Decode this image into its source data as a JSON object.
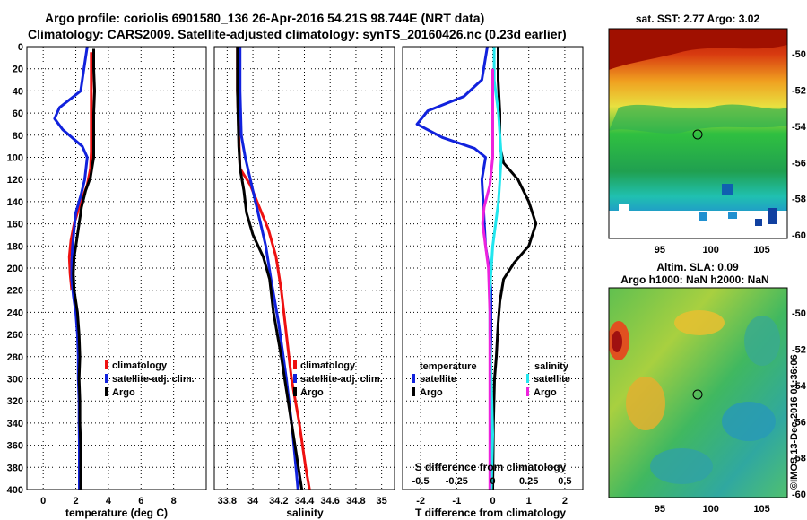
{
  "titles": {
    "line1": "Argo profile: coriolis 6901580_136 26-Apr-2016 54.21S 98.744E (NRT data)",
    "line2": "Climatology: CARS2009. Satellite-adjusted climatology: synTS_20160426.nc (0.23d earlier)"
  },
  "colors": {
    "climatology": "#ee1111",
    "satellite": "#1122dd",
    "argo": "#000000",
    "sat_salinity": "#22e6ee",
    "salinity_diff": "#ee22dd"
  },
  "depth_ticks": [
    0,
    20,
    40,
    60,
    80,
    100,
    120,
    140,
    160,
    180,
    200,
    220,
    240,
    260,
    280,
    300,
    320,
    340,
    360,
    380,
    400
  ],
  "chart_data": [
    {
      "type": "line",
      "id": "temperature",
      "xlabel": "temperature (deg C)",
      "ylabel": "depth",
      "xlim": [
        -1,
        10
      ],
      "ylim": [
        400,
        0
      ],
      "xticks": [
        "0",
        "2",
        "4",
        "6",
        "8"
      ],
      "xtick_values": [
        0,
        2,
        4,
        6,
        8
      ],
      "legend": [
        "climatology",
        "satellite-adj. clim.",
        "Argo"
      ],
      "series": [
        {
          "name": "climatology",
          "color_key": "climatology",
          "points": [
            [
              2.95,
              5
            ],
            [
              2.95,
              30
            ],
            [
              2.95,
              50
            ],
            [
              2.95,
              75
            ],
            [
              2.95,
              95
            ],
            [
              2.9,
              110
            ],
            [
              2.7,
              125
            ],
            [
              2.2,
              145
            ],
            [
              1.9,
              160
            ],
            [
              1.7,
              175
            ],
            [
              1.6,
              190
            ],
            [
              1.65,
              205
            ],
            [
              1.75,
              220
            ]
          ]
        },
        {
          "name": "satellite-adj. clim.",
          "color_key": "satellite",
          "points": [
            [
              2.7,
              0
            ],
            [
              2.5,
              20
            ],
            [
              2.3,
              40
            ],
            [
              1.0,
              55
            ],
            [
              0.7,
              65
            ],
            [
              1.2,
              75
            ],
            [
              2.4,
              90
            ],
            [
              2.7,
              100
            ],
            [
              2.55,
              120
            ],
            [
              2.3,
              135
            ],
            [
              2.0,
              150
            ],
            [
              1.9,
              165
            ],
            [
              1.8,
              180
            ],
            [
              1.75,
              195
            ],
            [
              1.75,
              210
            ],
            [
              1.85,
              225
            ],
            [
              2.0,
              240
            ],
            [
              2.1,
              260
            ],
            [
              2.15,
              280
            ],
            [
              2.15,
              300
            ],
            [
              2.2,
              320
            ],
            [
              2.2,
              340
            ],
            [
              2.22,
              360
            ],
            [
              2.22,
              380
            ],
            [
              2.22,
              400
            ]
          ]
        },
        {
          "name": "Argo",
          "color_key": "argo",
          "points": [
            [
              3.1,
              2
            ],
            [
              3.1,
              20
            ],
            [
              3.15,
              40
            ],
            [
              3.1,
              60
            ],
            [
              3.1,
              80
            ],
            [
              3.1,
              100
            ],
            [
              2.9,
              118
            ],
            [
              2.6,
              130
            ],
            [
              2.35,
              145
            ],
            [
              2.2,
              160
            ],
            [
              2.05,
              175
            ],
            [
              1.9,
              190
            ],
            [
              1.85,
              205
            ],
            [
              1.9,
              220
            ],
            [
              2.1,
              240
            ],
            [
              2.2,
              260
            ],
            [
              2.25,
              280
            ],
            [
              2.2,
              300
            ],
            [
              2.25,
              320
            ],
            [
              2.25,
              340
            ],
            [
              2.3,
              360
            ],
            [
              2.3,
              380
            ],
            [
              2.3,
              400
            ]
          ]
        }
      ]
    },
    {
      "type": "line",
      "id": "salinity",
      "xlabel": "salinity",
      "ylabel": "depth",
      "xlim": [
        33.7,
        35.1
      ],
      "ylim": [
        400,
        0
      ],
      "xticks": [
        "33.8",
        "34",
        "34.2",
        "34.4",
        "34.6",
        "34.8",
        "35"
      ],
      "xtick_values": [
        33.8,
        34,
        34.2,
        34.4,
        34.6,
        34.8,
        35
      ],
      "legend": [
        "climatology",
        "satellite-adj. clim.",
        "Argo"
      ],
      "series": [
        {
          "name": "climatology",
          "color_key": "climatology",
          "points": [
            [
              33.88,
              0
            ],
            [
              33.88,
              40
            ],
            [
              33.89,
              80
            ],
            [
              33.9,
              110
            ],
            [
              33.98,
              125
            ],
            [
              34.05,
              145
            ],
            [
              34.12,
              165
            ],
            [
              34.18,
              190
            ],
            [
              34.22,
              220
            ],
            [
              34.26,
              260
            ],
            [
              34.3,
              300
            ],
            [
              34.36,
              340
            ],
            [
              34.41,
              380
            ],
            [
              34.44,
              400
            ]
          ]
        },
        {
          "name": "satellite-adj. clim.",
          "color_key": "satellite",
          "points": [
            [
              33.9,
              0
            ],
            [
              33.9,
              40
            ],
            [
              33.91,
              80
            ],
            [
              33.94,
              100
            ],
            [
              33.98,
              120
            ],
            [
              34.02,
              140
            ],
            [
              34.06,
              160
            ],
            [
              34.1,
              180
            ],
            [
              34.14,
              210
            ],
            [
              34.2,
              250
            ],
            [
              34.26,
              300
            ],
            [
              34.31,
              350
            ],
            [
              34.35,
              400
            ]
          ]
        },
        {
          "name": "Argo",
          "color_key": "argo",
          "points": [
            [
              33.88,
              0
            ],
            [
              33.88,
              40
            ],
            [
              33.89,
              90
            ],
            [
              33.9,
              110
            ],
            [
              33.93,
              130
            ],
            [
              33.95,
              150
            ],
            [
              34.0,
              170
            ],
            [
              34.08,
              190
            ],
            [
              34.13,
              210
            ],
            [
              34.16,
              240
            ],
            [
              34.22,
              280
            ],
            [
              34.26,
              310
            ],
            [
              34.3,
              340
            ],
            [
              34.34,
              370
            ],
            [
              34.38,
              400
            ]
          ]
        }
      ]
    },
    {
      "type": "line",
      "id": "difference",
      "xlabel": "T difference from climatology",
      "ylabel": "depth",
      "top_xlabel": "S difference from climatology",
      "xlim": [
        -2.5,
        2.5
      ],
      "ylim": [
        400,
        0
      ],
      "xticks": [
        "-2",
        "-1",
        "0",
        "1",
        "2"
      ],
      "xtick_values": [
        -2,
        -1,
        0,
        1,
        2
      ],
      "top_xticks": [
        "-0.5",
        "-0.25",
        "0",
        "0.25",
        "0.5"
      ],
      "top_xtick_values": [
        -0.5,
        -0.25,
        0,
        0.25,
        0.5
      ],
      "legend_groups": [
        {
          "title": "temperature",
          "items": [
            "satellite",
            "Argo"
          ]
        },
        {
          "title": "salinity",
          "items": [
            "satellite",
            "Argo"
          ]
        }
      ],
      "series": [
        {
          "name": "temperature satellite",
          "color_key": "satellite",
          "points": [
            [
              -0.15,
              0
            ],
            [
              -0.3,
              30
            ],
            [
              -0.8,
              45
            ],
            [
              -1.8,
              58
            ],
            [
              -2.1,
              70
            ],
            [
              -1.4,
              82
            ],
            [
              -0.5,
              92
            ],
            [
              -0.2,
              100
            ],
            [
              -0.3,
              120
            ],
            [
              -0.25,
              150
            ],
            [
              -0.2,
              180
            ],
            [
              -0.1,
              200
            ],
            [
              -0.05,
              220
            ],
            [
              -0.05,
              260
            ],
            [
              -0.07,
              300
            ],
            [
              -0.05,
              350
            ],
            [
              -0.05,
              400
            ]
          ]
        },
        {
          "name": "temperature Argo",
          "color_key": "argo",
          "points": [
            [
              0.15,
              0
            ],
            [
              0.15,
              30
            ],
            [
              0.2,
              60
            ],
            [
              0.2,
              90
            ],
            [
              0.3,
              105
            ],
            [
              0.7,
              120
            ],
            [
              1.0,
              140
            ],
            [
              1.2,
              160
            ],
            [
              1.0,
              180
            ],
            [
              0.6,
              195
            ],
            [
              0.3,
              210
            ],
            [
              0.2,
              230
            ],
            [
              0.15,
              250
            ],
            [
              0.1,
              280
            ],
            [
              0.05,
              300
            ],
            [
              0.02,
              340
            ],
            [
              0.0,
              400
            ]
          ]
        },
        {
          "name": "salinity satellite",
          "color_key": "sat_salinity",
          "points": [
            [
              0.01,
              0
            ],
            [
              0.01,
              30
            ],
            [
              0.04,
              60
            ],
            [
              0.06,
              100
            ],
            [
              0.04,
              140
            ],
            [
              0.0,
              180
            ],
            [
              -0.02,
              220
            ],
            [
              -0.02,
              260
            ],
            [
              -0.01,
              300
            ],
            [
              0.0,
              350
            ],
            [
              -0.01,
              400
            ]
          ]
        },
        {
          "name": "salinity Argo",
          "color_key": "salinity_diff",
          "points": [
            [
              0.0,
              20
            ],
            [
              0.0,
              60
            ],
            [
              0.0,
              100
            ],
            [
              -0.02,
              125
            ],
            [
              -0.06,
              145
            ],
            [
              -0.07,
              160
            ],
            [
              -0.05,
              180
            ],
            [
              -0.03,
              200
            ],
            [
              -0.02,
              240
            ],
            [
              -0.02,
              280
            ],
            [
              -0.02,
              320
            ],
            [
              -0.02,
              360
            ],
            [
              -0.02,
              400
            ]
          ]
        }
      ]
    },
    {
      "type": "heatmap",
      "id": "sst_map",
      "title": "sat. SST: 2.77 Argo: 3.02",
      "xticks": [
        "95",
        "100",
        "105"
      ],
      "xtick_values": [
        95,
        100,
        105
      ],
      "yticks": [
        "-50",
        "-52",
        "-54",
        "-56",
        "-58",
        "-60"
      ],
      "ytick_values": [
        -50,
        -52,
        -54,
        -56,
        -58,
        -60
      ],
      "xlim": [
        90,
        107.5
      ],
      "ylim": [
        -60.2,
        -48.6
      ],
      "marker": {
        "lon": 98.744,
        "lat": -54.21
      }
    },
    {
      "type": "heatmap",
      "id": "sla_map",
      "title": "Altim. SLA: 0.09",
      "subtitle": "Argo h1000: NaN h2000: NaN",
      "xticks": [
        "95",
        "100",
        "105"
      ],
      "xtick_values": [
        95,
        100,
        105
      ],
      "yticks": [
        "-50",
        "-52",
        "-54",
        "-56",
        "-58",
        "-60"
      ],
      "ytick_values": [
        -50,
        -52,
        -54,
        -56,
        -58,
        -60
      ],
      "xlim": [
        90,
        107.5
      ],
      "ylim": [
        -60.2,
        -48.6
      ],
      "marker": {
        "lon": 98.744,
        "lat": -54.21
      }
    }
  ],
  "legend_labels": {
    "climatology": "climatology",
    "satellite_adj": "satellite-adj. clim.",
    "argo": "Argo",
    "temperature": "temperature",
    "salinity": "salinity",
    "satellite": "satellite"
  },
  "watermark": "©IMOS 13-Dec-2016 01:36:06"
}
